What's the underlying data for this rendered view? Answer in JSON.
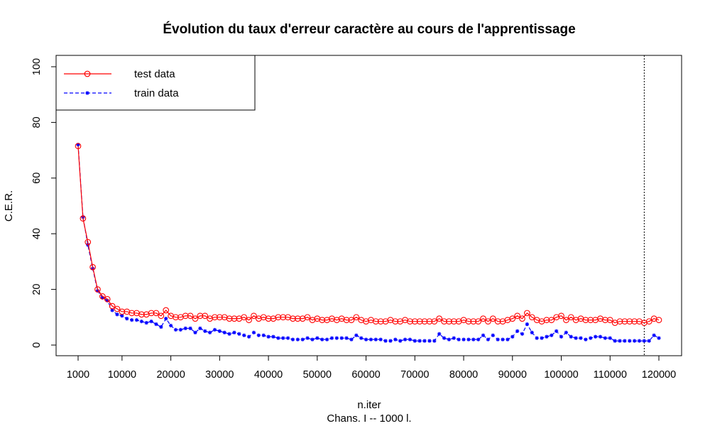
{
  "chart_data": {
    "type": "line",
    "title": "Évolution du taux d'erreur caractère au cours de l'apprentissage",
    "xlabel": "n.iter",
    "xlabel2": "Chans. I -- 1000 l.",
    "ylabel": "C.E.R.",
    "xlim": [
      1000,
      120000
    ],
    "ylim": [
      0,
      100
    ],
    "x_ticks": [
      1000,
      10000,
      20000,
      30000,
      40000,
      50000,
      60000,
      70000,
      80000,
      90000,
      100000,
      110000,
      120000
    ],
    "x_tick_labels": [
      "1000",
      "10000",
      "20000",
      "30000",
      "40000",
      "50000",
      "60000",
      "70000",
      "80000",
      "90000",
      "100000",
      "110000",
      "120000"
    ],
    "y_ticks": [
      0,
      20,
      40,
      60,
      80,
      100
    ],
    "y_tick_labels": [
      "0",
      "20",
      "40",
      "60",
      "80",
      "100"
    ],
    "grid": false,
    "legend_position": "top-left",
    "vline_x": 117000,
    "x": [
      1000,
      2000,
      3000,
      4000,
      5000,
      6000,
      7000,
      8000,
      9000,
      10000,
      11000,
      12000,
      13000,
      14000,
      15000,
      16000,
      17000,
      18000,
      19000,
      20000,
      21000,
      22000,
      23000,
      24000,
      25000,
      26000,
      27000,
      28000,
      29000,
      30000,
      31000,
      32000,
      33000,
      34000,
      35000,
      36000,
      37000,
      38000,
      39000,
      40000,
      41000,
      42000,
      43000,
      44000,
      45000,
      46000,
      47000,
      48000,
      49000,
      50000,
      51000,
      52000,
      53000,
      54000,
      55000,
      56000,
      57000,
      58000,
      59000,
      60000,
      61000,
      62000,
      63000,
      64000,
      65000,
      66000,
      67000,
      68000,
      69000,
      70000,
      71000,
      72000,
      73000,
      74000,
      75000,
      76000,
      77000,
      78000,
      79000,
      80000,
      81000,
      82000,
      83000,
      84000,
      85000,
      86000,
      87000,
      88000,
      89000,
      90000,
      91000,
      92000,
      93000,
      94000,
      95000,
      96000,
      97000,
      98000,
      99000,
      100000,
      101000,
      102000,
      103000,
      104000,
      105000,
      106000,
      107000,
      108000,
      109000,
      110000,
      111000,
      112000,
      113000,
      114000,
      115000,
      116000,
      117000,
      118000,
      119000,
      120000
    ],
    "series": [
      {
        "name": "test data",
        "color": "#ff0000",
        "line_style": "solid",
        "marker": "circle",
        "values": [
          71.5,
          45.5,
          37.0,
          28.0,
          20.0,
          17.5,
          16.5,
          14.0,
          13.0,
          12.0,
          12.0,
          11.5,
          11.5,
          11.0,
          11.0,
          11.5,
          11.5,
          10.5,
          12.5,
          10.5,
          10.0,
          10.0,
          10.5,
          10.5,
          9.5,
          10.5,
          10.5,
          9.5,
          10.0,
          10.0,
          10.0,
          9.5,
          9.5,
          9.5,
          10.0,
          9.0,
          10.5,
          9.5,
          10.0,
          9.5,
          9.5,
          10.0,
          10.0,
          10.0,
          9.5,
          9.5,
          9.5,
          10.0,
          9.0,
          9.5,
          9.0,
          9.0,
          9.5,
          9.0,
          9.5,
          9.0,
          9.0,
          10.0,
          9.0,
          8.5,
          9.0,
          8.5,
          8.5,
          8.5,
          9.0,
          8.5,
          8.5,
          9.0,
          8.5,
          8.5,
          8.5,
          8.5,
          8.5,
          8.5,
          9.5,
          8.5,
          8.5,
          8.5,
          8.5,
          9.0,
          8.5,
          8.5,
          8.5,
          9.5,
          8.5,
          9.5,
          8.5,
          8.5,
          9.0,
          9.5,
          10.5,
          9.5,
          11.5,
          10.0,
          9.0,
          8.5,
          9.0,
          9.0,
          10.0,
          10.5,
          9.0,
          10.0,
          9.0,
          9.5,
          9.0,
          9.0,
          9.0,
          9.5,
          9.0,
          9.0,
          8.0,
          8.5,
          8.5,
          8.5,
          8.5,
          8.5,
          8.0,
          8.5,
          9.5,
          9.0
        ]
      },
      {
        "name": "train data",
        "color": "#0000ff",
        "line_style": "dashed",
        "marker": "star",
        "values": [
          72.0,
          46.0,
          36.0,
          27.5,
          19.5,
          17.0,
          16.0,
          12.5,
          11.0,
          10.5,
          9.5,
          9.0,
          9.0,
          8.5,
          8.0,
          8.5,
          7.5,
          6.5,
          9.5,
          7.0,
          5.5,
          5.5,
          6.0,
          6.0,
          4.5,
          6.0,
          5.0,
          4.5,
          5.5,
          5.0,
          4.5,
          4.0,
          4.5,
          4.0,
          3.5,
          3.0,
          4.5,
          3.5,
          3.5,
          3.0,
          3.0,
          2.5,
          2.5,
          2.5,
          2.0,
          2.0,
          2.0,
          2.5,
          2.0,
          2.5,
          2.0,
          2.0,
          2.5,
          2.5,
          2.5,
          2.5,
          2.0,
          3.5,
          2.5,
          2.0,
          2.0,
          2.0,
          2.0,
          1.5,
          1.5,
          2.0,
          1.5,
          2.0,
          2.0,
          1.5,
          1.5,
          1.5,
          1.5,
          1.5,
          4.0,
          2.5,
          2.0,
          2.5,
          2.0,
          2.0,
          2.0,
          2.0,
          2.0,
          3.5,
          2.0,
          3.5,
          2.0,
          2.0,
          2.0,
          3.0,
          5.0,
          4.0,
          7.5,
          4.5,
          2.5,
          2.5,
          3.0,
          3.5,
          5.0,
          3.0,
          4.5,
          3.0,
          2.5,
          2.5,
          2.0,
          2.5,
          3.0,
          3.0,
          2.5,
          2.5,
          1.5,
          1.5,
          1.5,
          1.5,
          1.5,
          1.5,
          1.5,
          1.5,
          3.5,
          2.5
        ]
      }
    ]
  }
}
